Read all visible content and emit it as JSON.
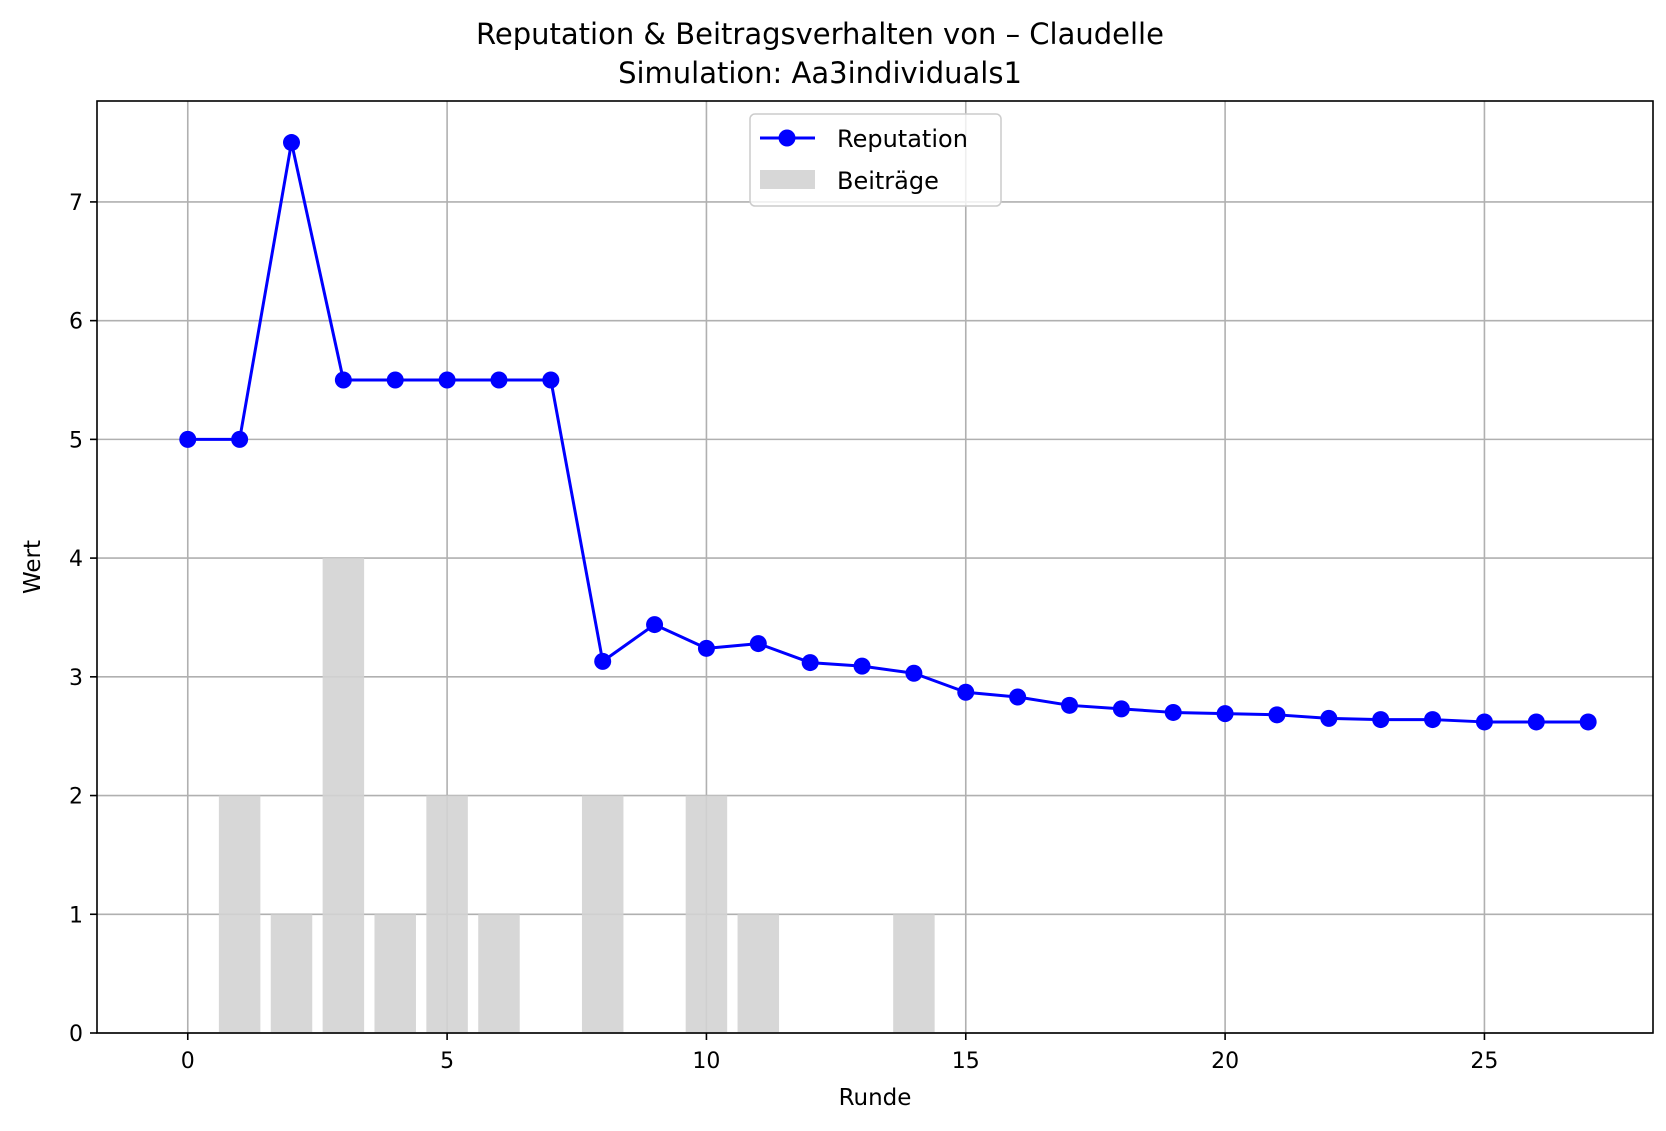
{
  "chart_data": {
    "type": "line",
    "title": "Reputation & Beitragsverhalten von – Claudelle",
    "subtitle": "Simulation: Aa3individuals1",
    "xlabel": "Runde",
    "ylabel": "Wert",
    "xlim": [
      -1.75,
      28.25
    ],
    "ylim": [
      0,
      7.85
    ],
    "xticks": [
      0,
      5,
      10,
      15,
      20,
      25
    ],
    "yticks": [
      0,
      1,
      2,
      3,
      4,
      5,
      6,
      7
    ],
    "grid": true,
    "legend_position": "upper center",
    "series": [
      {
        "name": "Reputation",
        "type": "line",
        "marker": "circle",
        "color": "#0000ff",
        "x": [
          0,
          1,
          2,
          3,
          4,
          5,
          6,
          7,
          8,
          9,
          10,
          11,
          12,
          13,
          14,
          15,
          16,
          17,
          18,
          19,
          20,
          21,
          22,
          23,
          24,
          25,
          26,
          27
        ],
        "values": [
          5.0,
          5.0,
          7.5,
          5.5,
          5.5,
          5.5,
          5.5,
          5.5,
          3.13,
          3.44,
          3.24,
          3.28,
          3.12,
          3.09,
          3.03,
          2.87,
          2.83,
          2.76,
          2.73,
          2.7,
          2.69,
          2.68,
          2.65,
          2.64,
          2.64,
          2.62,
          2.62,
          2.62
        ]
      },
      {
        "name": "Beiträge",
        "type": "bar",
        "color": "#d3d3d3",
        "x": [
          1,
          2,
          3,
          4,
          5,
          6,
          8,
          10,
          11,
          14
        ],
        "values": [
          2,
          1,
          4,
          1,
          2,
          1,
          2,
          2,
          1,
          1
        ]
      }
    ]
  }
}
